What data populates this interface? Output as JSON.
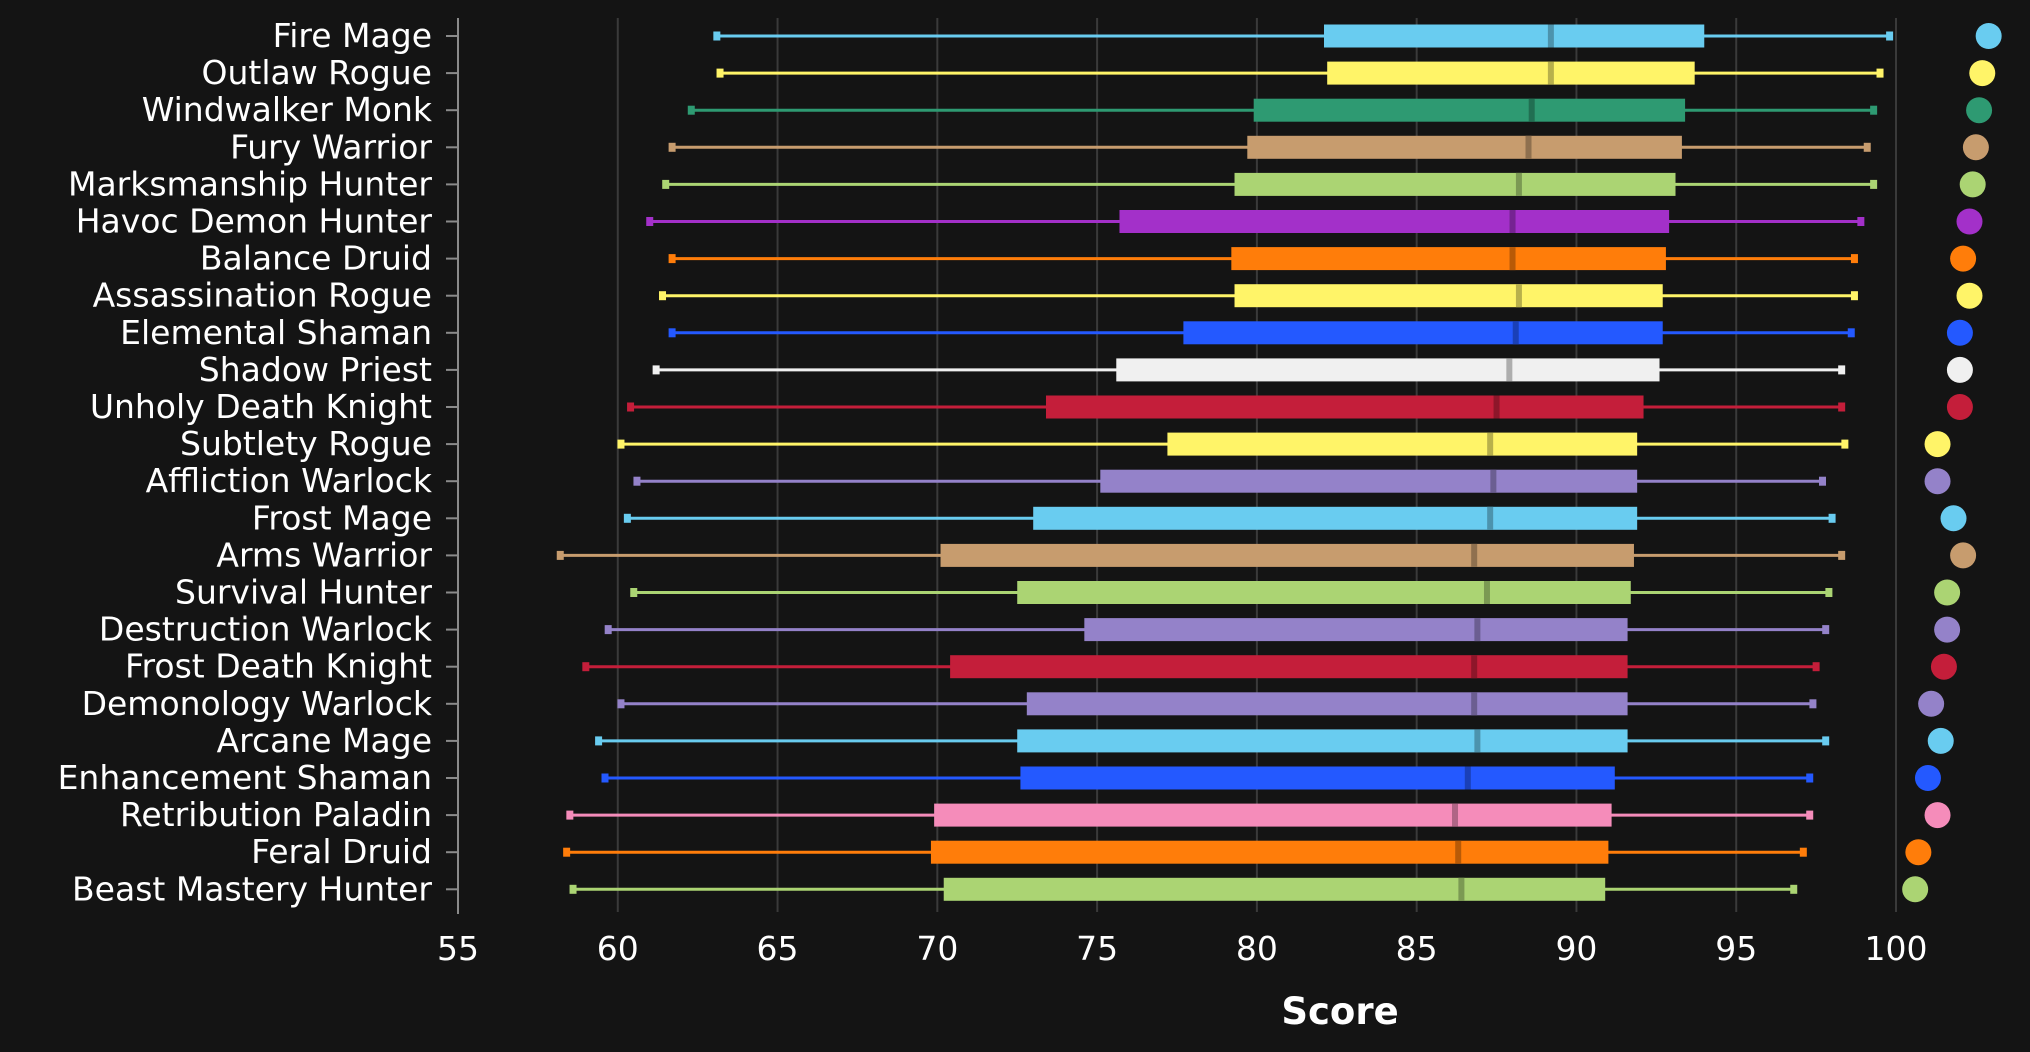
{
  "chart_data": {
    "type": "boxplot",
    "orientation": "horizontal",
    "xlabel": "Score",
    "xlim": [
      55,
      100
    ],
    "xticks": [
      55,
      60,
      65,
      70,
      75,
      80,
      85,
      90,
      95,
      100
    ],
    "grid": true,
    "background": "#141414",
    "categories": [
      "Fire Mage",
      "Outlaw Rogue",
      "Windwalker Monk",
      "Fury Warrior",
      "Marksmanship Hunter",
      "Havoc Demon Hunter",
      "Balance Druid",
      "Assassination Rogue",
      "Elemental Shaman",
      "Shadow Priest",
      "Unholy Death Knight",
      "Subtlety Rogue",
      "Affliction Warlock",
      "Frost Mage",
      "Arms Warrior",
      "Survival Hunter",
      "Destruction Warlock",
      "Frost Death Knight",
      "Demonology Warlock",
      "Arcane Mage",
      "Enhancement Shaman",
      "Retribution Paladin",
      "Feral Druid",
      "Beast Mastery Hunter"
    ],
    "series": [
      {
        "color": "#69ccf0",
        "min": 63.1,
        "q1": 82.1,
        "median": 89.2,
        "q3": 94.0,
        "max": 99.8,
        "marker": 102.9
      },
      {
        "color": "#fff468",
        "min": 63.2,
        "q1": 82.2,
        "median": 89.2,
        "q3": 93.7,
        "max": 99.5,
        "marker": 102.7
      },
      {
        "color": "#2e9a72",
        "min": 62.3,
        "q1": 79.9,
        "median": 88.6,
        "q3": 93.4,
        "max": 99.3,
        "marker": 102.6
      },
      {
        "color": "#c79c6e",
        "min": 61.7,
        "q1": 79.7,
        "median": 88.5,
        "q3": 93.3,
        "max": 99.1,
        "marker": 102.5
      },
      {
        "color": "#abd473",
        "min": 61.5,
        "q1": 79.3,
        "median": 88.2,
        "q3": 93.1,
        "max": 99.3,
        "marker": 102.4
      },
      {
        "color": "#a330c9",
        "min": 61.0,
        "q1": 75.7,
        "median": 88.0,
        "q3": 92.9,
        "max": 98.9,
        "marker": 102.3
      },
      {
        "color": "#ff7d0a",
        "min": 61.7,
        "q1": 79.2,
        "median": 88.0,
        "q3": 92.8,
        "max": 98.7,
        "marker": 102.1
      },
      {
        "color": "#fff468",
        "min": 61.4,
        "q1": 79.3,
        "median": 88.2,
        "q3": 92.7,
        "max": 98.7,
        "marker": 102.3
      },
      {
        "color": "#2459ff",
        "min": 61.7,
        "q1": 77.7,
        "median": 88.1,
        "q3": 92.7,
        "max": 98.6,
        "marker": 102.0
      },
      {
        "color": "#f0f0f0",
        "min": 61.2,
        "q1": 75.6,
        "median": 87.9,
        "q3": 92.6,
        "max": 98.3,
        "marker": 102.0
      },
      {
        "color": "#c41e3a",
        "min": 60.4,
        "q1": 73.4,
        "median": 87.5,
        "q3": 92.1,
        "max": 98.3,
        "marker": 102.0
      },
      {
        "color": "#fff468",
        "min": 60.1,
        "q1": 77.2,
        "median": 87.3,
        "q3": 91.9,
        "max": 98.4,
        "marker": 101.3
      },
      {
        "color": "#9482c9",
        "min": 60.6,
        "q1": 75.1,
        "median": 87.4,
        "q3": 91.9,
        "max": 97.7,
        "marker": 101.3
      },
      {
        "color": "#69ccf0",
        "min": 60.3,
        "q1": 73.0,
        "median": 87.3,
        "q3": 91.9,
        "max": 98.0,
        "marker": 101.8
      },
      {
        "color": "#c79c6e",
        "min": 58.2,
        "q1": 70.1,
        "median": 86.8,
        "q3": 91.8,
        "max": 98.3,
        "marker": 102.1
      },
      {
        "color": "#abd473",
        "min": 60.5,
        "q1": 72.5,
        "median": 87.2,
        "q3": 91.7,
        "max": 97.9,
        "marker": 101.6
      },
      {
        "color": "#9482c9",
        "min": 59.7,
        "q1": 74.6,
        "median": 86.9,
        "q3": 91.6,
        "max": 97.8,
        "marker": 101.6
      },
      {
        "color": "#c41e3a",
        "min": 59.0,
        "q1": 70.4,
        "median": 86.8,
        "q3": 91.6,
        "max": 97.5,
        "marker": 101.5
      },
      {
        "color": "#9482c9",
        "min": 60.1,
        "q1": 72.8,
        "median": 86.8,
        "q3": 91.6,
        "max": 97.4,
        "marker": 101.1
      },
      {
        "color": "#69ccf0",
        "min": 59.4,
        "q1": 72.5,
        "median": 86.9,
        "q3": 91.6,
        "max": 97.8,
        "marker": 101.4
      },
      {
        "color": "#2459ff",
        "min": 59.6,
        "q1": 72.6,
        "median": 86.6,
        "q3": 91.2,
        "max": 97.3,
        "marker": 101.0
      },
      {
        "color": "#f58cba",
        "min": 58.5,
        "q1": 69.9,
        "median": 86.2,
        "q3": 91.1,
        "max": 97.3,
        "marker": 101.3
      },
      {
        "color": "#ff7d0a",
        "min": 58.4,
        "q1": 69.8,
        "median": 86.3,
        "q3": 91.0,
        "max": 97.1,
        "marker": 100.7
      },
      {
        "color": "#abd473",
        "min": 58.6,
        "q1": 70.2,
        "median": 86.4,
        "q3": 90.9,
        "max": 96.8,
        "marker": 100.6
      }
    ]
  }
}
